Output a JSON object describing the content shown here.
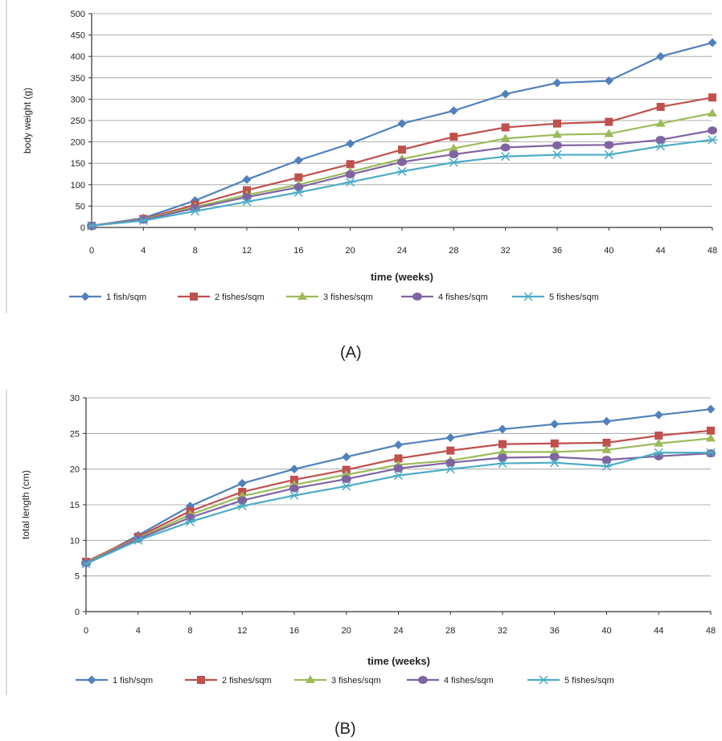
{
  "chart_data": [
    {
      "type": "line",
      "title": "",
      "xlabel": "time (weeks)",
      "ylabel": "body weight (g)",
      "x": [
        0,
        4,
        8,
        12,
        16,
        20,
        24,
        28,
        32,
        36,
        40,
        44,
        48
      ],
      "ylim": [
        0,
        500
      ],
      "yticks": [
        0,
        50,
        100,
        150,
        200,
        250,
        300,
        350,
        400,
        450,
        500
      ],
      "grid": true,
      "legend_position": "bottom",
      "series": [
        {
          "name": "1 fish/sqm",
          "color": "#4f81bd",
          "marker": "diamond",
          "values": [
            4,
            22,
            63,
            112,
            157,
            196,
            243,
            273,
            312,
            338,
            343,
            400,
            432
          ]
        },
        {
          "name": "2 fishes/sqm",
          "color": "#c0504d",
          "marker": "square",
          "values": [
            4,
            20,
            53,
            87,
            117,
            148,
            182,
            212,
            234,
            243,
            247,
            282,
            304
          ]
        },
        {
          "name": "3 fishes/sqm",
          "color": "#9bbb59",
          "marker": "triangle",
          "values": [
            4,
            19,
            48,
            76,
            100,
            130,
            160,
            185,
            208,
            217,
            219,
            243,
            267
          ]
        },
        {
          "name": "4 fishes/sqm",
          "color": "#8064a2",
          "marker": "circle",
          "values": [
            4,
            18,
            45,
            71,
            94,
            124,
            153,
            171,
            187,
            192,
            193,
            205,
            227
          ]
        },
        {
          "name": "5 fishes/sqm",
          "color": "#4bacc6",
          "marker": "asterisk",
          "values": [
            4,
            16,
            38,
            60,
            82,
            106,
            131,
            152,
            166,
            170,
            170,
            190,
            205
          ]
        }
      ]
    },
    {
      "type": "line",
      "title": "",
      "xlabel": "time (weeks)",
      "ylabel": "total length (cm)",
      "x": [
        0,
        4,
        8,
        12,
        16,
        20,
        24,
        28,
        32,
        36,
        40,
        44,
        48
      ],
      "ylim": [
        0,
        30
      ],
      "yticks": [
        0,
        5,
        10,
        15,
        20,
        25,
        30
      ],
      "grid": true,
      "legend_position": "bottom",
      "series": [
        {
          "name": "1 fish/sqm",
          "color": "#4f81bd",
          "marker": "diamond",
          "values": [
            6.8,
            10.7,
            14.8,
            18.0,
            20.0,
            21.7,
            23.4,
            24.4,
            25.6,
            26.3,
            26.7,
            27.6,
            28.4
          ]
        },
        {
          "name": "2 fishes/sqm",
          "color": "#c0504d",
          "marker": "square",
          "values": [
            7.0,
            10.5,
            14.1,
            16.8,
            18.5,
            19.9,
            21.5,
            22.6,
            23.5,
            23.6,
            23.7,
            24.7,
            25.4
          ]
        },
        {
          "name": "3 fishes/sqm",
          "color": "#9bbb59",
          "marker": "triangle",
          "values": [
            6.9,
            10.3,
            13.6,
            16.2,
            17.8,
            19.2,
            20.6,
            21.2,
            22.4,
            22.4,
            22.7,
            23.6,
            24.3
          ]
        },
        {
          "name": "4 fishes/sqm",
          "color": "#8064a2",
          "marker": "circle",
          "values": [
            6.8,
            10.2,
            13.2,
            15.6,
            17.3,
            18.6,
            20.1,
            20.9,
            21.6,
            21.7,
            21.3,
            21.8,
            22.2
          ]
        },
        {
          "name": "5 fishes/sqm",
          "color": "#4bacc6",
          "marker": "asterisk",
          "values": [
            6.7,
            10.0,
            12.6,
            14.8,
            16.3,
            17.6,
            19.1,
            20.0,
            20.8,
            20.9,
            20.4,
            22.3,
            22.3
          ]
        }
      ]
    }
  ],
  "captions": {
    "a": "(A)",
    "b": "(B)"
  }
}
